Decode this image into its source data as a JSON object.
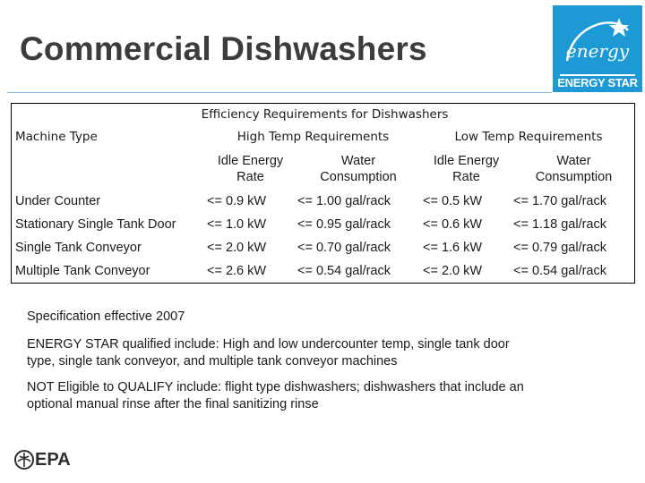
{
  "slide": {
    "title": "Commercial Dishwashers",
    "logo": {
      "text": "ENERGY STAR",
      "script": "energy",
      "bg_color": "#1d9ad6"
    }
  },
  "table": {
    "caption": "Efficiency Requirements for Dishwashers",
    "col_machine": "Machine Type",
    "group_high": "High Temp Requirements",
    "group_low": "Low Temp Requirements",
    "sub": {
      "high_idle": "Idle Energy Rate",
      "high_water": "Water Consumption",
      "low_idle": "Idle Energy Rate",
      "low_water": "Water Consumption"
    },
    "rows": [
      {
        "type": "Under Counter",
        "h_idle": "<= 0.9 kW",
        "h_water": "<= 1.00 gal/rack",
        "l_idle": "<= 0.5 kW",
        "l_water": "<= 1.70 gal/rack"
      },
      {
        "type": "Stationary Single Tank Door",
        "h_idle": "<= 1.0 kW",
        "h_water": "<= 0.95 gal/rack",
        "l_idle": "<= 0.6 kW",
        "l_water": "<= 1.18 gal/rack"
      },
      {
        "type": "Single Tank Conveyor",
        "h_idle": "<= 2.0 kW",
        "h_water": "<= 0.70 gal/rack",
        "l_idle": "<= 1.6 kW",
        "l_water": "<= 0.79 gal/rack"
      },
      {
        "type": "Multiple Tank Conveyor",
        "h_idle": "<= 2.6 kW",
        "h_water": "<= 0.54 gal/rack",
        "l_idle": "<= 2.0 kW",
        "l_water": "<= 0.54 gal/rack"
      }
    ]
  },
  "notes": {
    "effective": "Specification effective 2007",
    "qualified": "ENERGY STAR qualified include: High and low undercounter temp, single tank door type, single tank conveyor, and multiple tank conveyor machines",
    "not_eligible": "NOT Eligible to QUALIFY include: flight type dishwashers; dishwashers that include an optional manual rinse after the final sanitizing rinse"
  },
  "footer": {
    "epa": "EPA",
    "icon": "epa-flower-icon"
  }
}
